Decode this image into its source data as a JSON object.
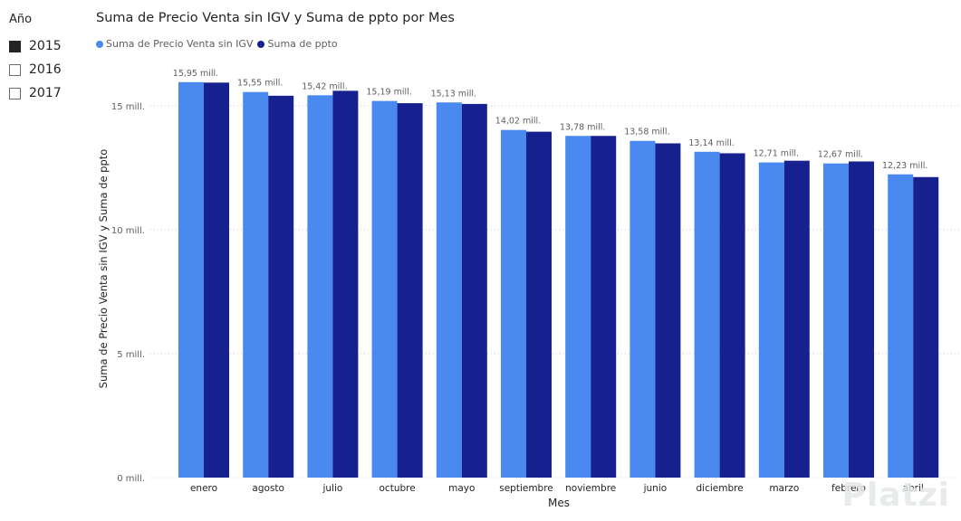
{
  "slicer": {
    "title": "Año",
    "items": [
      {
        "label": "2015",
        "checked": true
      },
      {
        "label": "2016",
        "checked": false
      },
      {
        "label": "2017",
        "checked": false
      }
    ]
  },
  "watermark": "Platzi",
  "chart_data": {
    "type": "bar",
    "title": "Suma de Precio Venta sin IGV y Suma de ppto por Mes",
    "xlabel": "Mes",
    "ylabel": "Suma de Precio Venta sin IGV y Suma de ppto",
    "ylim": [
      0,
      17
    ],
    "yticks": [
      0,
      5,
      10,
      15
    ],
    "ytick_labels": [
      "0 mill.",
      "5 mill.",
      "10 mill.",
      "15 mill."
    ],
    "grid": true,
    "legend_position": "top-left",
    "categories": [
      "enero",
      "agosto",
      "julio",
      "octubre",
      "mayo",
      "septiembre",
      "noviembre",
      "junio",
      "diciembre",
      "marzo",
      "febrero",
      "abril"
    ],
    "series": [
      {
        "name": "Suma de Precio Venta sin IGV",
        "color": "#4a8af0",
        "values": [
          15.95,
          15.55,
          15.42,
          15.19,
          15.13,
          14.02,
          13.78,
          13.58,
          13.14,
          12.71,
          12.67,
          12.23
        ],
        "data_labels": [
          "15,95 mill.",
          "15,55 mill.",
          "15,42 mill.",
          "15,19 mill.",
          "15,13 mill.",
          "14,02 mill.",
          "13,78 mill.",
          "13,58 mill.",
          "13,14 mill.",
          "12,71 mill.",
          "12,67 mill.",
          "12,23 mill."
        ]
      },
      {
        "name": "Suma de ppto",
        "color": "#16208f",
        "values": [
          15.93,
          15.4,
          15.6,
          15.1,
          15.07,
          13.95,
          13.78,
          13.48,
          13.08,
          12.78,
          12.75,
          12.12
        ]
      }
    ]
  }
}
